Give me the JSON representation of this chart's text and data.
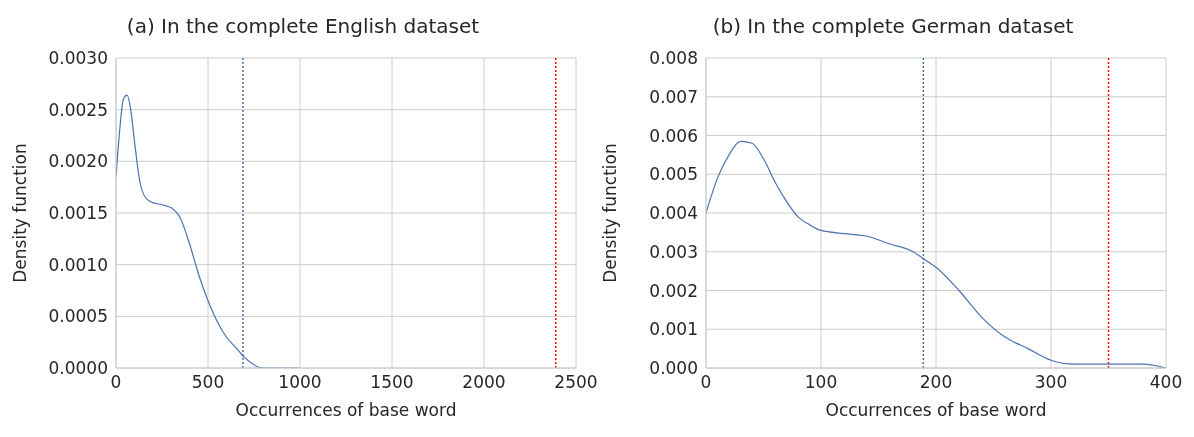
{
  "chart_data": [
    {
      "type": "line",
      "title": "(a) In the complete English dataset",
      "xlabel": "Occurrences of base word",
      "ylabel": "Density function",
      "xlim": [
        0,
        2500
      ],
      "xticks": [
        0,
        500,
        1000,
        1500,
        2000,
        2500
      ],
      "ylim": [
        0,
        0.003
      ],
      "yticks": [
        {
          "value": 0,
          "label": "0.0000"
        },
        {
          "value": 0.0005,
          "label": "0.0005"
        },
        {
          "value": 0.001,
          "label": "0.0010"
        },
        {
          "value": 0.0015,
          "label": "0.0015"
        },
        {
          "value": 0.002,
          "label": "0.0020"
        },
        {
          "value": 0.0025,
          "label": "0.0025"
        },
        {
          "value": 0.003,
          "label": "0.0030"
        }
      ],
      "grid": true,
      "line_style": "solid",
      "series": [
        {
          "color": "#4c72b0",
          "x": [
            0,
            20,
            40,
            60,
            80,
            100,
            130,
            160,
            200,
            250,
            300,
            350,
            400,
            450,
            500,
            550,
            600,
            650,
            700,
            800,
            900,
            1000
          ],
          "values": [
            0.00185,
            0.0023,
            0.0026,
            0.00264,
            0.0025,
            0.0022,
            0.0018,
            0.00165,
            0.0016,
            0.00158,
            0.00155,
            0.00145,
            0.0012,
            0.0009,
            0.00065,
            0.00045,
            0.0003,
            0.0002,
            0.0001,
            0,
            0,
            0
          ]
        }
      ],
      "ref_lines": [
        {
          "axis": "x",
          "value": 690,
          "color": "#4c72b0",
          "line_style": "dotted"
        },
        {
          "axis": "x",
          "value": 2390,
          "color": "#ff0000",
          "line_style": "dotted"
        }
      ]
    },
    {
      "type": "line",
      "title": "(b) In the complete German dataset",
      "xlabel": "Occurrences of base word",
      "ylabel": "Density function",
      "xlim": [
        0,
        400
      ],
      "xticks": [
        0,
        100,
        200,
        300,
        400
      ],
      "ylim": [
        0,
        0.008
      ],
      "yticks": [
        {
          "value": 0,
          "label": "0.000"
        },
        {
          "value": 0.001,
          "label": "0.001"
        },
        {
          "value": 0.002,
          "label": "0.002"
        },
        {
          "value": 0.003,
          "label": "0.003"
        },
        {
          "value": 0.004,
          "label": "0.004"
        },
        {
          "value": 0.005,
          "label": "0.005"
        },
        {
          "value": 0.006,
          "label": "0.006"
        },
        {
          "value": 0.007,
          "label": "0.007"
        },
        {
          "value": 0.008,
          "label": "0.008"
        }
      ],
      "grid": true,
      "line_style": "solid",
      "series": [
        {
          "color": "#4c72b0",
          "x": [
            0,
            10,
            20,
            30,
            40,
            50,
            60,
            70,
            80,
            90,
            100,
            120,
            140,
            160,
            180,
            190,
            200,
            220,
            240,
            260,
            280,
            300,
            320,
            340,
            360,
            380,
            400
          ],
          "values": [
            0.004,
            0.0049,
            0.0055,
            0.00585,
            0.0058,
            0.0054,
            0.0048,
            0.0043,
            0.0039,
            0.0037,
            0.00355,
            0.00347,
            0.0034,
            0.0032,
            0.003,
            0.0028,
            0.0026,
            0.002,
            0.0013,
            0.0008,
            0.0005,
            0.0002,
            0.0001,
            0.0001,
            0.0001,
            0.0001,
            0
          ]
        }
      ],
      "ref_lines": [
        {
          "axis": "x",
          "value": 189,
          "color": "#4c72b0",
          "line_style": "dotted"
        },
        {
          "axis": "x",
          "value": 350,
          "color": "#ff0000",
          "line_style": "dotted"
        }
      ]
    }
  ]
}
